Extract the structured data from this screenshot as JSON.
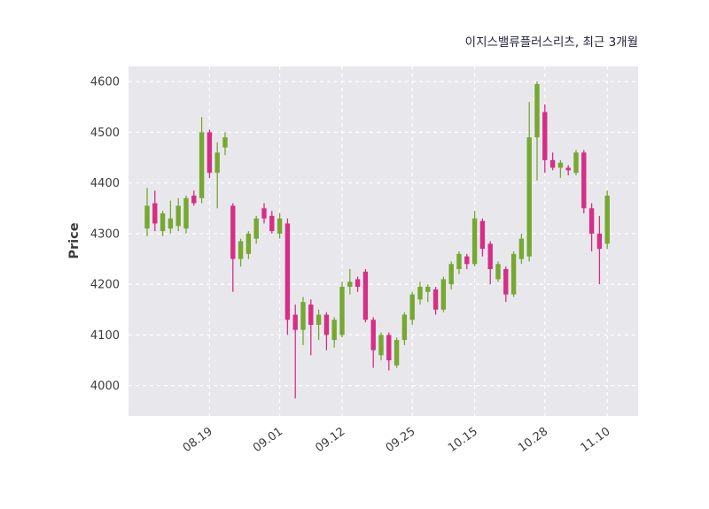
{
  "chart_data": {
    "type": "candlestick",
    "title": "이지스밸류플러스리츠, 최근 3개월",
    "ylabel": "Price",
    "xlabel": "",
    "ylim": [
      3940,
      4630
    ],
    "yticks": [
      4000,
      4100,
      4200,
      4300,
      4400,
      4500,
      4600
    ],
    "xticks": [
      {
        "index": 8,
        "label": "08.19"
      },
      {
        "index": 17,
        "label": "09.01"
      },
      {
        "index": 25,
        "label": "09.12"
      },
      {
        "index": 34,
        "label": "09.25"
      },
      {
        "index": 42,
        "label": "10.15"
      },
      {
        "index": 51,
        "label": "10.28"
      },
      {
        "index": 59,
        "label": "11.10"
      }
    ],
    "grid": "on",
    "legend": "none",
    "candle_format": [
      "open",
      "high",
      "low",
      "close"
    ],
    "colors": {
      "up": "#76A832",
      "down": "#D62E87",
      "plot_bg": "#E8E8EC",
      "grid": "#FFFFFF",
      "figure_bg": "#FFFFFF"
    },
    "candles": [
      [
        4310,
        4390,
        4295,
        4355
      ],
      [
        4360,
        4385,
        4305,
        4320
      ],
      [
        4305,
        4345,
        4295,
        4340
      ],
      [
        4310,
        4365,
        4300,
        4330
      ],
      [
        4315,
        4370,
        4305,
        4355
      ],
      [
        4310,
        4375,
        4300,
        4370
      ],
      [
        4375,
        4385,
        4355,
        4360
      ],
      [
        4370,
        4530,
        4360,
        4500
      ],
      [
        4500,
        4505,
        4410,
        4420
      ],
      [
        4420,
        4480,
        4350,
        4460
      ],
      [
        4470,
        4500,
        4455,
        4490
      ],
      [
        4355,
        4360,
        4185,
        4250
      ],
      [
        4250,
        4290,
        4235,
        4285
      ],
      [
        4260,
        4305,
        4250,
        4300
      ],
      [
        4290,
        4335,
        4280,
        4330
      ],
      [
        4350,
        4360,
        4320,
        4330
      ],
      [
        4335,
        4345,
        4300,
        4305
      ],
      [
        4300,
        4340,
        4290,
        4330
      ],
      [
        4320,
        4330,
        4100,
        4130
      ],
      [
        4140,
        4160,
        3975,
        4110
      ],
      [
        4110,
        4175,
        4080,
        4165
      ],
      [
        4160,
        4170,
        4060,
        4120
      ],
      [
        4120,
        4150,
        4090,
        4140
      ],
      [
        4140,
        4145,
        4070,
        4100
      ],
      [
        4090,
        4135,
        4075,
        4130
      ],
      [
        4100,
        4205,
        4095,
        4195
      ],
      [
        4195,
        4230,
        4180,
        4205
      ],
      [
        4210,
        4215,
        4185,
        4195
      ],
      [
        4225,
        4230,
        4125,
        4130
      ],
      [
        4130,
        4135,
        4035,
        4070
      ],
      [
        4060,
        4105,
        4050,
        4100
      ],
      [
        4100,
        4105,
        4030,
        4050
      ],
      [
        4040,
        4095,
        4035,
        4090
      ],
      [
        4090,
        4145,
        4080,
        4140
      ],
      [
        4130,
        4185,
        4120,
        4180
      ],
      [
        4170,
        4205,
        4160,
        4195
      ],
      [
        4185,
        4200,
        4165,
        4195
      ],
      [
        4190,
        4195,
        4140,
        4150
      ],
      [
        4150,
        4215,
        4145,
        4210
      ],
      [
        4200,
        4245,
        4190,
        4240
      ],
      [
        4230,
        4265,
        4220,
        4260
      ],
      [
        4255,
        4260,
        4230,
        4240
      ],
      [
        4240,
        4345,
        4235,
        4330
      ],
      [
        4325,
        4330,
        4255,
        4270
      ],
      [
        4280,
        4285,
        4200,
        4230
      ],
      [
        4210,
        4245,
        4205,
        4240
      ],
      [
        4230,
        4235,
        4165,
        4180
      ],
      [
        4180,
        4265,
        4175,
        4260
      ],
      [
        4250,
        4300,
        4240,
        4290
      ],
      [
        4255,
        4560,
        4245,
        4490
      ],
      [
        4490,
        4600,
        4405,
        4595
      ],
      [
        4540,
        4555,
        4420,
        4445
      ],
      [
        4445,
        4460,
        4425,
        4430
      ],
      [
        4430,
        4445,
        4410,
        4440
      ],
      [
        4430,
        4435,
        4415,
        4425
      ],
      [
        4420,
        4465,
        4415,
        4460
      ],
      [
        4460,
        4465,
        4340,
        4350
      ],
      [
        4350,
        4360,
        4265,
        4300
      ],
      [
        4300,
        4335,
        4200,
        4270
      ],
      [
        4280,
        4385,
        4270,
        4375
      ]
    ]
  }
}
